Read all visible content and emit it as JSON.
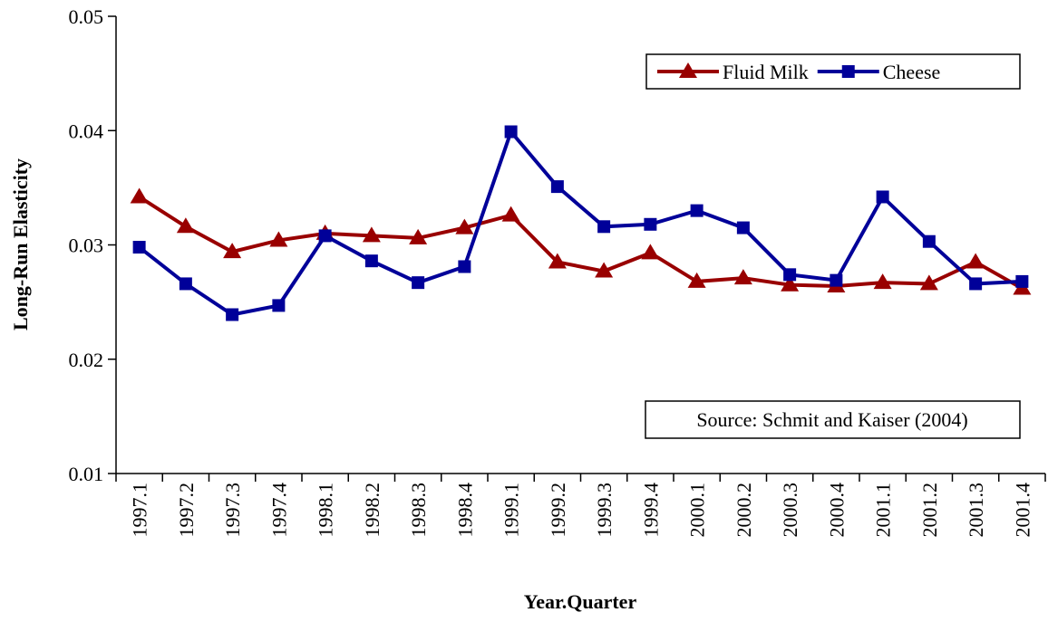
{
  "chart_data": {
    "type": "line",
    "x_label": "Year.Quarter",
    "y_label": "Long-Run Elasticity",
    "annotation": "Source: Schmit and Kaiser (2004)",
    "categories": [
      "1997.1",
      "1997.2",
      "1997.3",
      "1997.4",
      "1998.1",
      "1998.2",
      "1998.3",
      "1998.4",
      "1999.1",
      "1999.2",
      "1999.3",
      "1999.4",
      "2000.1",
      "2000.2",
      "2000.3",
      "2000.4",
      "2001.1",
      "2001.2",
      "2001.3",
      "2001.4"
    ],
    "series": [
      {
        "name": "Fluid Milk",
        "color": "#990000",
        "marker": "triangle",
        "values": [
          0.0342,
          0.0316,
          0.0294,
          0.0304,
          0.031,
          0.0308,
          0.0306,
          0.0315,
          0.0326,
          0.0285,
          0.0277,
          0.0293,
          0.0268,
          0.0271,
          0.0265,
          0.0264,
          0.0267,
          0.0266,
          0.0285,
          0.0262
        ]
      },
      {
        "name": "Cheese",
        "color": "#000099",
        "marker": "square",
        "values": [
          0.0298,
          0.0266,
          0.0239,
          0.0247,
          0.0308,
          0.0286,
          0.0267,
          0.0281,
          0.0399,
          0.0351,
          0.0316,
          0.0318,
          0.033,
          0.0315,
          0.0274,
          0.0269,
          0.0342,
          0.0303,
          0.0266,
          0.0268
        ]
      }
    ],
    "ylim": [
      0.01,
      0.05
    ],
    "yticks": [
      0.01,
      0.02,
      0.03,
      0.04,
      0.05
    ],
    "grid": false,
    "legend_position": "upper-right"
  }
}
